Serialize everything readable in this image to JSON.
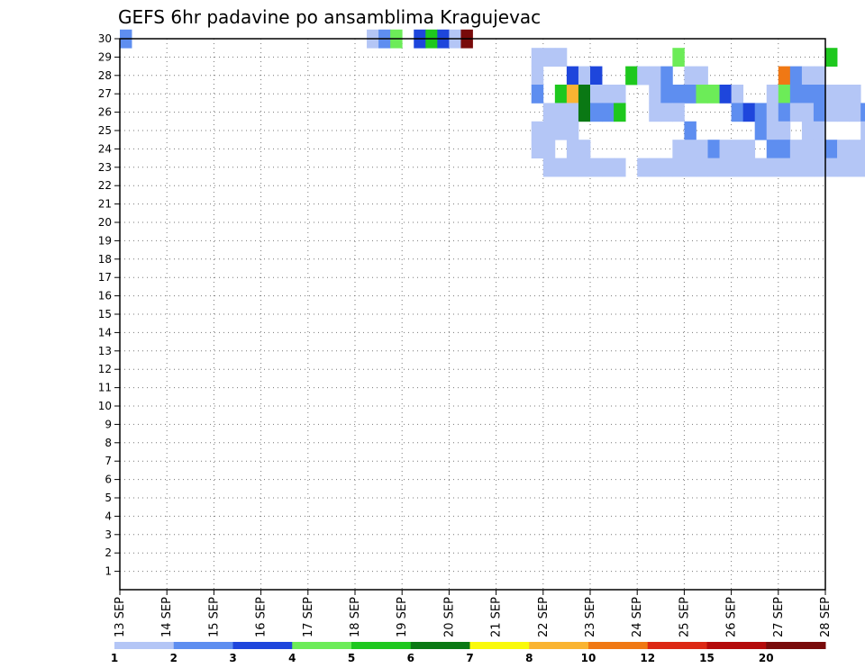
{
  "chart_data": {
    "type": "heatmap",
    "title": "GEFS 6hr padavine po ansamblima Kragujevac",
    "x_axis": {
      "ticks": [
        "13 SEP",
        "14 SEP",
        "15 SEP",
        "16 SEP",
        "17 SEP",
        "18 SEP",
        "19 SEP",
        "20 SEP",
        "21 SEP",
        "22 SEP",
        "23 SEP",
        "24 SEP",
        "25 SEP",
        "26 SEP",
        "27 SEP",
        "28 SEP"
      ],
      "range_days": [
        0,
        15
      ],
      "step_hours": 6
    },
    "y_axis": {
      "label": "",
      "range": [
        1,
        30
      ]
    },
    "grid": true,
    "legend": {
      "placement": "bottom",
      "labels": [
        "1",
        "2",
        "3",
        "4",
        "5",
        "6",
        "7",
        "8",
        "10",
        "12",
        "15",
        "20"
      ],
      "colors": [
        "#b4c6f6",
        "#5e8ef0",
        "#1e46dc",
        "#6cec58",
        "#1ec81e",
        "#0a7814",
        "#fafa0a",
        "#fab432",
        "#f07814",
        "#dc2814",
        "#b40a0a",
        "#780a0a"
      ]
    },
    "cells": [
      [
        30,
        0,
        "B"
      ],
      [
        30,
        21,
        "A"
      ],
      [
        30,
        22,
        "B"
      ],
      [
        30,
        23,
        "D"
      ],
      [
        30,
        25,
        "C"
      ],
      [
        30,
        26,
        "E"
      ],
      [
        30,
        27,
        "C"
      ],
      [
        30,
        28,
        "A"
      ],
      [
        30,
        29,
        "L"
      ],
      [
        29,
        35,
        "A"
      ],
      [
        29,
        36,
        "A"
      ],
      [
        29,
        37,
        "A"
      ],
      [
        29,
        47,
        "D"
      ],
      [
        29,
        60,
        "E"
      ],
      [
        29,
        66,
        "A"
      ],
      [
        29,
        67,
        "C"
      ],
      [
        28,
        35,
        "A"
      ],
      [
        28,
        38,
        "C"
      ],
      [
        28,
        39,
        "A"
      ],
      [
        28,
        40,
        "C"
      ],
      [
        28,
        43,
        "E"
      ],
      [
        28,
        44,
        "A"
      ],
      [
        28,
        45,
        "A"
      ],
      [
        28,
        46,
        "B"
      ],
      [
        28,
        48,
        "A"
      ],
      [
        28,
        49,
        "A"
      ],
      [
        28,
        56,
        "I"
      ],
      [
        28,
        57,
        "B"
      ],
      [
        28,
        58,
        "A"
      ],
      [
        28,
        59,
        "A"
      ],
      [
        28,
        72,
        "B"
      ],
      [
        28,
        73,
        "A"
      ],
      [
        28,
        74,
        "B"
      ],
      [
        28,
        75,
        "A"
      ],
      [
        27,
        35,
        "B"
      ],
      [
        27,
        37,
        "E"
      ],
      [
        27,
        38,
        "H"
      ],
      [
        27,
        39,
        "F"
      ],
      [
        27,
        40,
        "A"
      ],
      [
        27,
        41,
        "A"
      ],
      [
        27,
        42,
        "A"
      ],
      [
        27,
        45,
        "A"
      ],
      [
        27,
        46,
        "B"
      ],
      [
        27,
        47,
        "B"
      ],
      [
        27,
        48,
        "B"
      ],
      [
        27,
        49,
        "D"
      ],
      [
        27,
        50,
        "D"
      ],
      [
        27,
        51,
        "C"
      ],
      [
        27,
        52,
        "A"
      ],
      [
        27,
        55,
        "A"
      ],
      [
        27,
        56,
        "D"
      ],
      [
        27,
        57,
        "B"
      ],
      [
        27,
        58,
        "B"
      ],
      [
        27,
        59,
        "B"
      ],
      [
        27,
        60,
        "A"
      ],
      [
        27,
        61,
        "A"
      ],
      [
        27,
        62,
        "A"
      ],
      [
        27,
        69,
        "B"
      ],
      [
        27,
        70,
        "D"
      ],
      [
        27,
        71,
        "A"
      ],
      [
        27,
        76,
        "B"
      ],
      [
        27,
        77,
        "A"
      ],
      [
        27,
        78,
        "A"
      ],
      [
        27,
        79,
        "A"
      ],
      [
        26,
        36,
        "A"
      ],
      [
        26,
        37,
        "A"
      ],
      [
        26,
        38,
        "A"
      ],
      [
        26,
        39,
        "F"
      ],
      [
        26,
        40,
        "B"
      ],
      [
        26,
        41,
        "B"
      ],
      [
        26,
        42,
        "E"
      ],
      [
        26,
        45,
        "A"
      ],
      [
        26,
        46,
        "A"
      ],
      [
        26,
        47,
        "A"
      ],
      [
        26,
        52,
        "B"
      ],
      [
        26,
        53,
        "C"
      ],
      [
        26,
        54,
        "B"
      ],
      [
        26,
        55,
        "A"
      ],
      [
        26,
        56,
        "B"
      ],
      [
        26,
        57,
        "A"
      ],
      [
        26,
        58,
        "A"
      ],
      [
        26,
        59,
        "B"
      ],
      [
        26,
        60,
        "A"
      ],
      [
        26,
        61,
        "A"
      ],
      [
        26,
        62,
        "A"
      ],
      [
        26,
        63,
        "B"
      ],
      [
        26,
        68,
        "A"
      ],
      [
        26,
        73,
        "D"
      ],
      [
        26,
        74,
        "A"
      ],
      [
        26,
        75,
        "A"
      ],
      [
        26,
        76,
        "A"
      ],
      [
        26,
        77,
        "A"
      ],
      [
        26,
        78,
        "A"
      ],
      [
        26,
        79,
        "B"
      ],
      [
        26,
        80,
        "B"
      ],
      [
        26,
        81,
        "A"
      ],
      [
        25,
        35,
        "A"
      ],
      [
        25,
        36,
        "A"
      ],
      [
        25,
        37,
        "A"
      ],
      [
        25,
        38,
        "A"
      ],
      [
        25,
        48,
        "B"
      ],
      [
        25,
        54,
        "B"
      ],
      [
        25,
        55,
        "A"
      ],
      [
        25,
        56,
        "A"
      ],
      [
        25,
        58,
        "A"
      ],
      [
        25,
        59,
        "A"
      ],
      [
        25,
        63,
        "A"
      ],
      [
        25,
        64,
        "D"
      ],
      [
        25,
        65,
        "A"
      ],
      [
        25,
        68,
        "A"
      ],
      [
        25,
        69,
        "A"
      ],
      [
        25,
        70,
        "A"
      ],
      [
        25,
        71,
        "A"
      ],
      [
        25,
        72,
        "A"
      ],
      [
        25,
        73,
        "A"
      ],
      [
        25,
        74,
        "B"
      ],
      [
        25,
        75,
        "B"
      ],
      [
        25,
        76,
        "A"
      ],
      [
        25,
        77,
        "B"
      ],
      [
        25,
        78,
        "B"
      ],
      [
        25,
        79,
        "D"
      ],
      [
        25,
        80,
        "I"
      ],
      [
        25,
        81,
        "A"
      ],
      [
        25,
        82,
        "A"
      ],
      [
        25,
        83,
        "A"
      ],
      [
        25,
        84,
        "A"
      ],
      [
        24,
        35,
        "A"
      ],
      [
        24,
        36,
        "A"
      ],
      [
        24,
        38,
        "A"
      ],
      [
        24,
        39,
        "A"
      ],
      [
        24,
        47,
        "A"
      ],
      [
        24,
        48,
        "A"
      ],
      [
        24,
        49,
        "A"
      ],
      [
        24,
        50,
        "B"
      ],
      [
        24,
        51,
        "A"
      ],
      [
        24,
        52,
        "A"
      ],
      [
        24,
        53,
        "A"
      ],
      [
        24,
        55,
        "B"
      ],
      [
        24,
        56,
        "B"
      ],
      [
        24,
        57,
        "A"
      ],
      [
        24,
        58,
        "A"
      ],
      [
        24,
        59,
        "A"
      ],
      [
        24,
        60,
        "B"
      ],
      [
        24,
        61,
        "A"
      ],
      [
        24,
        62,
        "A"
      ],
      [
        24,
        63,
        "A"
      ],
      [
        24,
        65,
        "A"
      ],
      [
        24,
        66,
        "A"
      ],
      [
        24,
        67,
        "A"
      ],
      [
        24,
        68,
        "A"
      ],
      [
        24,
        69,
        "A"
      ],
      [
        24,
        70,
        "A"
      ],
      [
        24,
        71,
        "A"
      ],
      [
        24,
        72,
        "A"
      ],
      [
        24,
        73,
        "A"
      ],
      [
        24,
        74,
        "B"
      ],
      [
        24,
        75,
        "A"
      ],
      [
        24,
        77,
        "A"
      ],
      [
        24,
        78,
        "A"
      ],
      [
        24,
        79,
        "B"
      ],
      [
        24,
        80,
        "A"
      ],
      [
        24,
        81,
        "A"
      ],
      [
        24,
        82,
        "A"
      ],
      [
        24,
        83,
        "A"
      ],
      [
        24,
        84,
        "A"
      ],
      [
        24,
        85,
        "A"
      ],
      [
        23,
        36,
        "A"
      ],
      [
        23,
        37,
        "A"
      ],
      [
        23,
        38,
        "A"
      ],
      [
        23,
        39,
        "A"
      ],
      [
        23,
        40,
        "A"
      ],
      [
        23,
        41,
        "A"
      ],
      [
        23,
        42,
        "A"
      ],
      [
        23,
        44,
        "A"
      ],
      [
        23,
        45,
        "A"
      ],
      [
        23,
        46,
        "A"
      ],
      [
        23,
        47,
        "A"
      ],
      [
        23,
        48,
        "A"
      ],
      [
        23,
        49,
        "A"
      ],
      [
        23,
        50,
        "A"
      ],
      [
        23,
        51,
        "A"
      ],
      [
        23,
        52,
        "A"
      ],
      [
        23,
        53,
        "A"
      ],
      [
        23,
        54,
        "A"
      ],
      [
        23,
        55,
        "A"
      ],
      [
        23,
        56,
        "A"
      ],
      [
        23,
        57,
        "A"
      ],
      [
        23,
        58,
        "A"
      ],
      [
        23,
        59,
        "A"
      ],
      [
        23,
        60,
        "A"
      ],
      [
        23,
        61,
        "A"
      ],
      [
        23,
        62,
        "A"
      ],
      [
        23,
        63,
        "A"
      ],
      [
        23,
        64,
        "A"
      ],
      [
        23,
        65,
        "A"
      ],
      [
        23,
        66,
        "A"
      ],
      [
        23,
        67,
        "A"
      ],
      [
        23,
        68,
        "A"
      ],
      [
        23,
        69,
        "A"
      ],
      [
        23,
        70,
        "A"
      ],
      [
        23,
        71,
        "A"
      ],
      [
        23,
        72,
        "A"
      ],
      [
        23,
        73,
        "A"
      ],
      [
        23,
        74,
        "A"
      ],
      [
        23,
        75,
        "A"
      ],
      [
        23,
        76,
        "A"
      ],
      [
        23,
        77,
        "A"
      ],
      [
        23,
        78,
        "A"
      ],
      [
        23,
        79,
        "A"
      ],
      [
        23,
        80,
        "A"
      ],
      [
        23,
        81,
        "A"
      ],
      [
        23,
        82,
        "A"
      ],
      [
        23,
        83,
        "A"
      ],
      [
        23,
        84,
        "A"
      ],
      [
        23,
        85,
        "A"
      ]
    ]
  }
}
